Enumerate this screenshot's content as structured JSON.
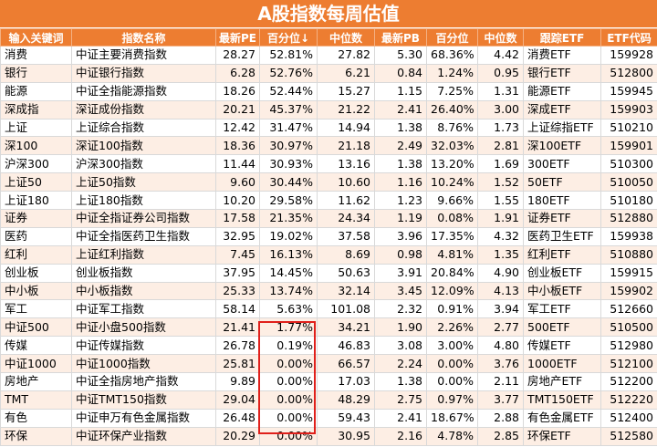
{
  "title": "A股指数每周估值",
  "columns": [
    "输入关键词",
    "指数名称",
    "最新PE",
    "百分位↓",
    "中位数",
    "最新PB",
    "百分位",
    "中位数",
    "跟踪ETF",
    "ETF代码"
  ],
  "rows": [
    [
      "消费",
      "中证主要消费指数",
      "28.27",
      "52.81%",
      "27.82",
      "5.30",
      "68.36%",
      "4.42",
      "消费ETF",
      "159928"
    ],
    [
      "银行",
      "中证银行指数",
      "6.28",
      "52.76%",
      "6.21",
      "0.84",
      "1.24%",
      "0.95",
      "银行ETF",
      "512800"
    ],
    [
      "能源",
      "中证全指能源指数",
      "18.26",
      "52.44%",
      "15.27",
      "1.15",
      "7.25%",
      "1.31",
      "能源ETF",
      "159945"
    ],
    [
      "深成指",
      "深证成份指数",
      "20.21",
      "45.37%",
      "21.22",
      "2.41",
      "26.40%",
      "3.00",
      "深成ETF",
      "159903"
    ],
    [
      "上证",
      "上证综合指数",
      "12.42",
      "31.47%",
      "14.94",
      "1.38",
      "8.76%",
      "1.73",
      "上证综指ETF",
      "510210"
    ],
    [
      "深100",
      "深证100指数",
      "18.36",
      "30.97%",
      "21.18",
      "2.49",
      "32.03%",
      "2.81",
      "深100ETF",
      "159901"
    ],
    [
      "沪深300",
      "沪深300指数",
      "11.44",
      "30.93%",
      "13.16",
      "1.38",
      "13.20%",
      "1.69",
      "300ETF",
      "510300"
    ],
    [
      "上证50",
      "上证50指数",
      "9.60",
      "30.44%",
      "10.60",
      "1.16",
      "10.24%",
      "1.52",
      "50ETF",
      "510050"
    ],
    [
      "上证180",
      "上证180指数",
      "10.20",
      "29.58%",
      "11.62",
      "1.23",
      "9.66%",
      "1.55",
      "180ETF",
      "510180"
    ],
    [
      "证券",
      "中证全指证券公司指数",
      "17.58",
      "21.35%",
      "24.34",
      "1.19",
      "0.08%",
      "1.91",
      "证券ETF",
      "512880"
    ],
    [
      "医药",
      "中证全指医药卫生指数",
      "32.95",
      "19.02%",
      "37.58",
      "3.96",
      "17.35%",
      "4.32",
      "医药卫生ETF",
      "159938"
    ],
    [
      "红利",
      "上证红利指数",
      "7.45",
      "16.13%",
      "8.69",
      "0.98",
      "4.81%",
      "1.35",
      "红利ETF",
      "510880"
    ],
    [
      "创业板",
      "创业板指数",
      "37.95",
      "14.45%",
      "50.63",
      "3.91",
      "20.84%",
      "4.90",
      "创业板ETF",
      "159915"
    ],
    [
      "中小板",
      "中小板指数",
      "25.33",
      "13.74%",
      "32.14",
      "3.45",
      "12.09%",
      "4.13",
      "中小板ETF",
      "159902"
    ],
    [
      "军工",
      "中证军工指数",
      "58.14",
      "5.63%",
      "101.08",
      "2.32",
      "0.91%",
      "3.94",
      "军工ETF",
      "512660"
    ],
    [
      "中证500",
      "中证小盘500指数",
      "21.41",
      "1.77%",
      "34.21",
      "1.90",
      "2.26%",
      "2.77",
      "500ETF",
      "510500"
    ],
    [
      "传媒",
      "中证传媒指数",
      "26.78",
      "0.19%",
      "46.83",
      "3.08",
      "3.00%",
      "4.80",
      "传媒ETF",
      "512980"
    ],
    [
      "中证1000",
      "中证1000指数",
      "25.81",
      "0.00%",
      "66.57",
      "2.24",
      "0.00%",
      "3.76",
      "1000ETF",
      "512100"
    ],
    [
      "房地产",
      "中证全指房地产指数",
      "9.89",
      "0.00%",
      "17.03",
      "1.38",
      "0.00%",
      "2.11",
      "房地产ETF",
      "512200"
    ],
    [
      "TMT",
      "中证TMT150指数",
      "29.04",
      "0.00%",
      "48.29",
      "2.75",
      "0.97%",
      "3.77",
      "TMT150ETF",
      "512220"
    ],
    [
      "有色",
      "中证申万有色金属指数",
      "26.48",
      "0.00%",
      "59.43",
      "2.41",
      "18.67%",
      "2.88",
      "有色金属ETF",
      "512400"
    ],
    [
      "环保",
      "中证环保产业指数",
      "20.29",
      "0.00%",
      "30.95",
      "2.16",
      "4.78%",
      "2.85",
      "环保ETF",
      "512580"
    ]
  ],
  "colors": {
    "header": "#ed7d31",
    "stripe": "#fdeee4",
    "highlight": "#e0201b"
  }
}
